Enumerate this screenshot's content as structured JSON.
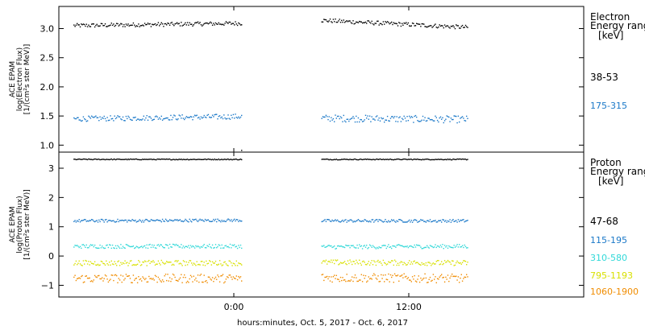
{
  "chart_data": [
    {
      "type": "scatter",
      "ylabel_lines": [
        "ACE EPAM",
        "log(Electron Flux)",
        "[1/(cm²s ster MeV)]"
      ],
      "ylim": [
        0.88,
        3.38
      ],
      "yticks": [
        1.0,
        1.5,
        2.0,
        2.5,
        3.0
      ],
      "ytick_labels": [
        "1.0",
        "1.5",
        "2.0",
        "2.5",
        "3.0"
      ],
      "legend_title_lines": [
        "Electron",
        "Energy ranges",
        "[keV]"
      ],
      "series": [
        {
          "name": "38-53",
          "color": "#000000",
          "segments": [
            {
              "x0": -11.0,
              "x1": 0.5,
              "y0": 3.06,
              "y1": 3.1,
              "noise": 0.035
            },
            {
              "x0": 6.0,
              "x1": 16.0,
              "y0": 3.15,
              "y1": 3.03,
              "noise": 0.035
            }
          ],
          "extra_points": [
            {
              "x": 0.5,
              "y": 0.92
            }
          ]
        },
        {
          "name": "175-315",
          "color": "#1a78c8",
          "segments": [
            {
              "x0": -11.0,
              "x1": 0.5,
              "y0": 1.46,
              "y1": 1.5,
              "noise": 0.045
            },
            {
              "x0": 6.0,
              "x1": 16.0,
              "y0": 1.47,
              "y1": 1.45,
              "noise": 0.06
            }
          ]
        }
      ]
    },
    {
      "type": "scatter",
      "ylabel_lines": [
        "ACE EPAM",
        "log(Proton Flux)",
        "[1/(cm²s ster MeV)]"
      ],
      "ylim": [
        -1.4,
        3.55
      ],
      "yticks": [
        -1,
        0,
        1,
        2,
        3
      ],
      "ytick_labels": [
        "−1",
        "0",
        "1",
        "2",
        "3"
      ],
      "legend_title_lines": [
        "Proton",
        "Energy ranges",
        "[keV]"
      ],
      "series": [
        {
          "name": "47-68",
          "color": "#000000",
          "segments": [
            {
              "x0": -11.0,
              "x1": 0.5,
              "y0": 3.32,
              "y1": 3.32,
              "noise": 0.015
            },
            {
              "x0": 6.0,
              "x1": 16.0,
              "y0": 3.32,
              "y1": 3.32,
              "noise": 0.015
            }
          ]
        },
        {
          "name": "115-195",
          "color": "#1a78c8",
          "segments": [
            {
              "x0": -11.0,
              "x1": 0.5,
              "y0": 1.22,
              "y1": 1.24,
              "noise": 0.05
            },
            {
              "x0": 6.0,
              "x1": 16.0,
              "y0": 1.22,
              "y1": 1.22,
              "noise": 0.05
            }
          ]
        },
        {
          "name": "310-580",
          "color": "#30d8d8",
          "segments": [
            {
              "x0": -11.0,
              "x1": 0.5,
              "y0": 0.35,
              "y1": 0.35,
              "noise": 0.07
            },
            {
              "x0": 6.0,
              "x1": 16.0,
              "y0": 0.33,
              "y1": 0.35,
              "noise": 0.07
            }
          ]
        },
        {
          "name": "795-1193",
          "color": "#d8e000",
          "segments": [
            {
              "x0": -11.0,
              "x1": 0.5,
              "y0": -0.22,
              "y1": -0.22,
              "noise": 0.09
            },
            {
              "x0": 6.0,
              "x1": 16.0,
              "y0": -0.2,
              "y1": -0.22,
              "noise": 0.09
            }
          ]
        },
        {
          "name": "1060-1900",
          "color": "#f08c00",
          "segments": [
            {
              "x0": -11.0,
              "x1": 0.5,
              "y0": -0.75,
              "y1": -0.75,
              "noise": 0.15
            },
            {
              "x0": 6.0,
              "x1": 16.0,
              "y0": -0.72,
              "y1": -0.75,
              "noise": 0.15
            }
          ]
        }
      ]
    }
  ],
  "x_axis": {
    "xlim": [
      -12.0,
      24.0
    ],
    "ticks": [
      0,
      12
    ],
    "tick_labels": [
      "0:00",
      "12:00"
    ],
    "xlabel": "hours:minutes, Oct.  5, 2017 - Oct.  6, 2017"
  }
}
